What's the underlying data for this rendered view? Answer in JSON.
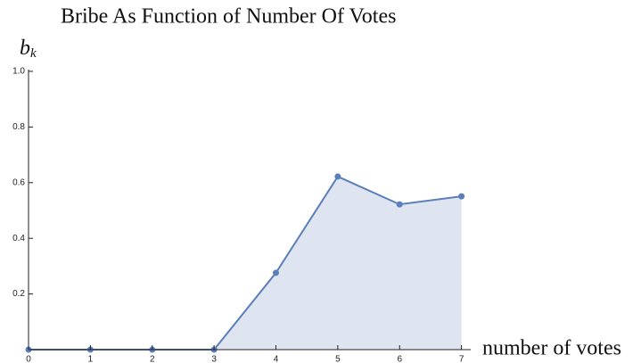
{
  "chart_data": {
    "type": "line",
    "title": "Bribe As Function of Number Of Votes",
    "xlabel": "number of votes",
    "ylabel": {
      "base": "b",
      "sub": "k"
    },
    "x": [
      0,
      1,
      2,
      3,
      4,
      5,
      6,
      7
    ],
    "series": [
      {
        "color": "#5b7fb9",
        "fill": "#dfe4f1",
        "values": [
          0,
          0,
          0,
          0,
          0.276,
          0.622,
          0.522,
          0.551
        ]
      }
    ],
    "xlim": [
      0,
      7.15
    ],
    "ylim": [
      0,
      1
    ],
    "xticks": [
      0,
      1,
      2,
      3,
      4,
      5,
      6,
      7
    ],
    "yticks": [
      0.2,
      0.4,
      0.6,
      0.8,
      {
        "value": 1,
        "label": "1.0"
      }
    ]
  }
}
